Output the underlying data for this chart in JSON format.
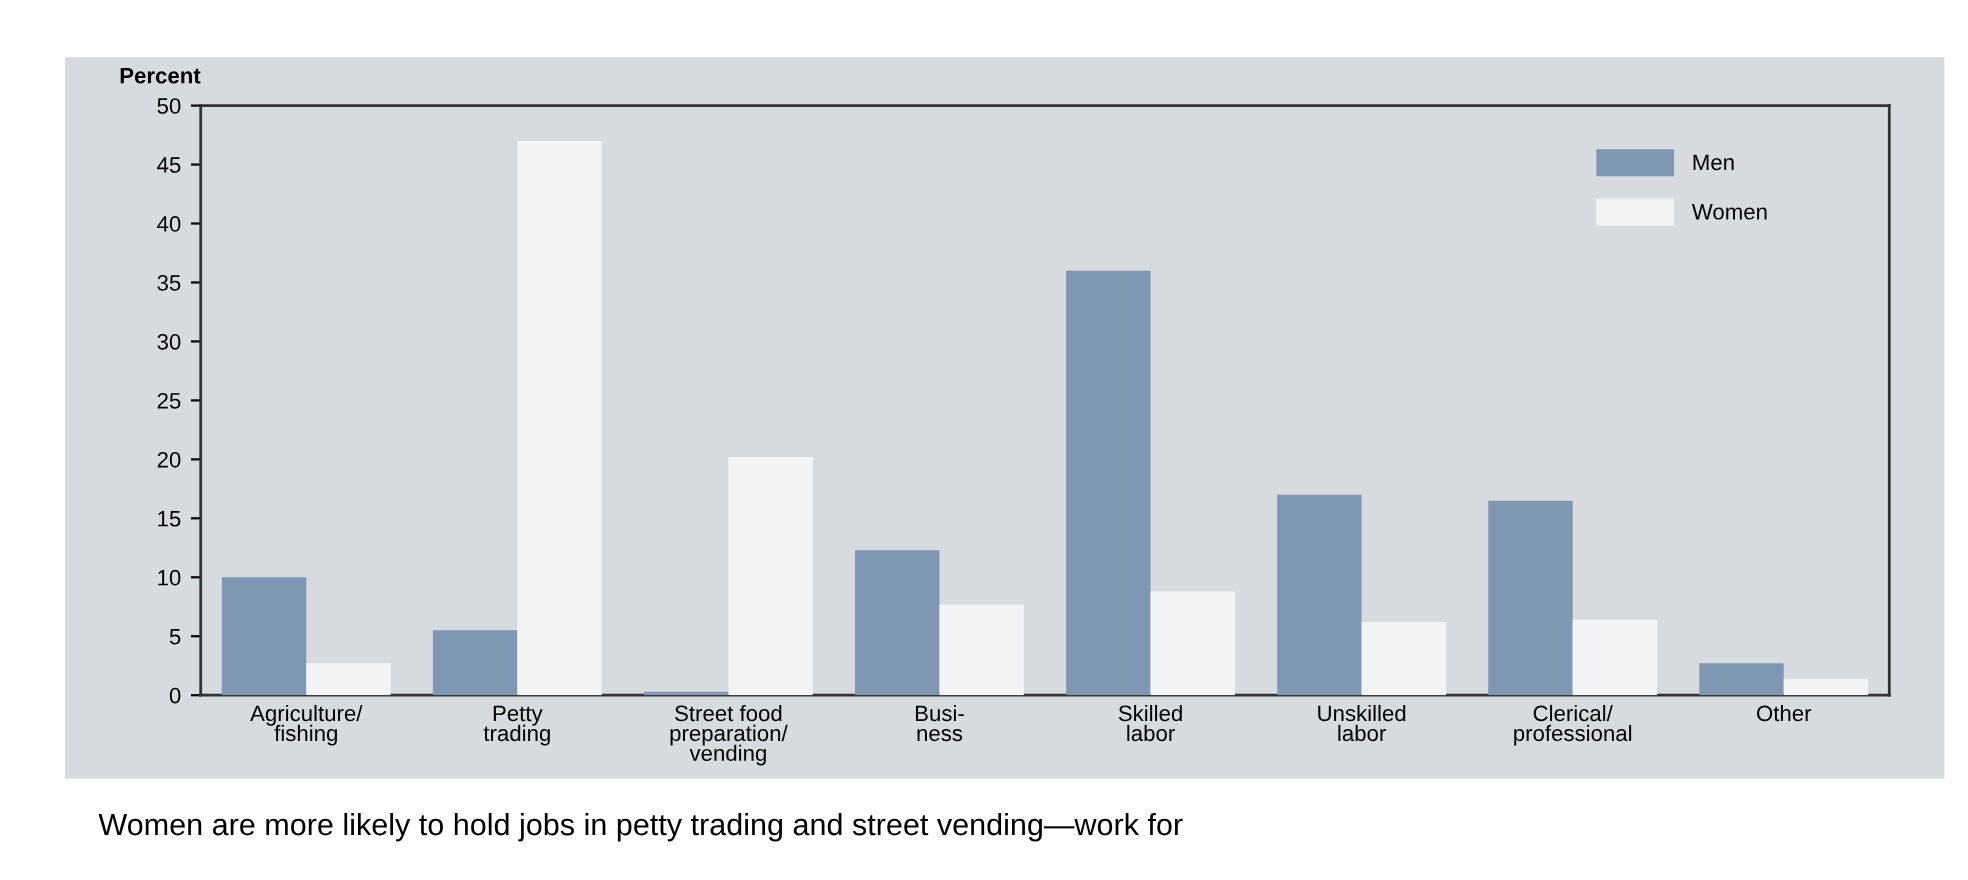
{
  "chart_data": {
    "type": "bar",
    "ylabel": "Percent",
    "categories": [
      "Agriculture/\nfishing",
      "Petty\ntrading",
      "Street food\npreparation/\nvending",
      "Busi-\nness",
      "Skilled\nlabor",
      "Unskilled\nlabor",
      "Clerical/\nprofessional",
      "Other"
    ],
    "series": [
      {
        "name": "Men",
        "color": "#7f97b2",
        "values": [
          10,
          5.5,
          0.3,
          12.3,
          36,
          17,
          16.5,
          2.7
        ]
      },
      {
        "name": "Women",
        "color": "#f2f3f5",
        "values": [
          2.7,
          47,
          20.2,
          7.7,
          8.8,
          6.2,
          6.4,
          1.4
        ]
      }
    ],
    "ylim": [
      0,
      50
    ],
    "yticks": [
      0,
      5,
      10,
      15,
      20,
      25,
      30,
      35,
      40,
      45,
      50
    ],
    "grid": false,
    "legend": "top right",
    "annotations": [
      "Women are more likely to hold jobs in petty trading and street vending—work for"
    ]
  }
}
